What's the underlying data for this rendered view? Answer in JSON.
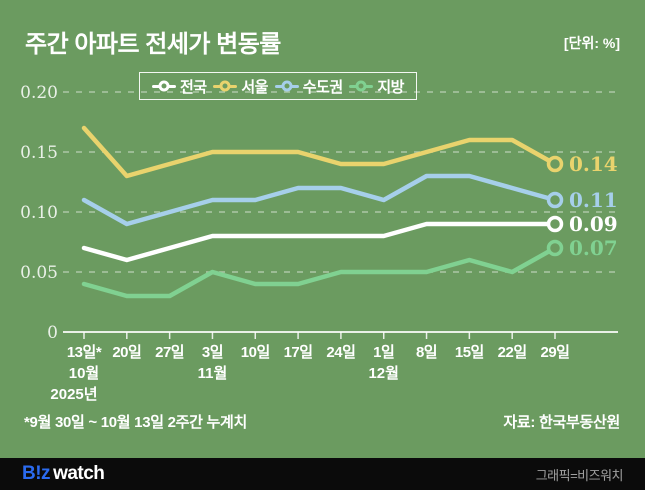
{
  "header": {
    "title": "주간 아파트 전세가 변동률",
    "unit_label": "[단위: %]"
  },
  "chart_data": {
    "type": "line",
    "title": "주간 아파트 전세가 변동률",
    "unit": "%",
    "categories": [
      "13일*",
      "20일",
      "27일",
      "3일",
      "10일",
      "17일",
      "24일",
      "1일",
      "8일",
      "15일",
      "22일",
      "29일"
    ],
    "month_labels": [
      {
        "index": 0,
        "label": "10월"
      },
      {
        "index": 3,
        "label": "11월"
      },
      {
        "index": 7,
        "label": "12월"
      }
    ],
    "year_label": {
      "index": 0,
      "label": "2025년"
    },
    "series": [
      {
        "name": "전국",
        "slug": "national",
        "color": "#ffffff",
        "values": [
          0.07,
          0.06,
          0.07,
          0.08,
          0.08,
          0.08,
          0.08,
          0.08,
          0.09,
          0.09,
          0.09,
          0.09
        ],
        "end_label": "0.09"
      },
      {
        "name": "서울",
        "slug": "seoul",
        "color": "#e9d36d",
        "values": [
          0.17,
          0.13,
          0.14,
          0.15,
          0.15,
          0.15,
          0.14,
          0.14,
          0.15,
          0.16,
          0.16,
          0.14
        ],
        "end_label": "0.14"
      },
      {
        "name": "수도권",
        "slug": "metro",
        "color": "#a6cfea",
        "values": [
          0.11,
          0.09,
          0.1,
          0.11,
          0.11,
          0.12,
          0.12,
          0.11,
          0.13,
          0.13,
          0.12,
          0.11
        ],
        "end_label": "0.11"
      },
      {
        "name": "지방",
        "slug": "regional",
        "color": "#80d191",
        "values": [
          0.04,
          0.03,
          0.03,
          0.05,
          0.04,
          0.04,
          0.05,
          0.05,
          0.05,
          0.06,
          0.05,
          0.07
        ],
        "end_label": "0.07"
      }
    ],
    "y_ticks": [
      {
        "value": 0.0,
        "label": "0"
      },
      {
        "value": 0.05,
        "label": "0.05"
      },
      {
        "value": 0.1,
        "label": "0.10"
      },
      {
        "value": 0.15,
        "label": "0.15"
      },
      {
        "value": 0.2,
        "label": "0.20"
      }
    ],
    "ylim": [
      0,
      0.2
    ],
    "grid": "horizontal-dashed",
    "legend_position": "top"
  },
  "footnote": "*9월 30일 ~ 10월 13일 2주간 누계치",
  "source": "자료: 한국부동산원",
  "footer": {
    "logo_b": "B!z",
    "logo_watch": "watch",
    "credit": "그래픽=비즈워치"
  },
  "colors": {
    "background": "#6b9b60",
    "grid": "rgba(255,255,255,0.45)",
    "axis": "rgba(255,255,255,0.85)",
    "tick_label": "rgba(255,255,255,0.85)",
    "x_label": "#ffffff",
    "footer_bg": "#0b0b0b",
    "logo_blue": "#2b6bef",
    "credit_gray": "#a0a0a0"
  }
}
